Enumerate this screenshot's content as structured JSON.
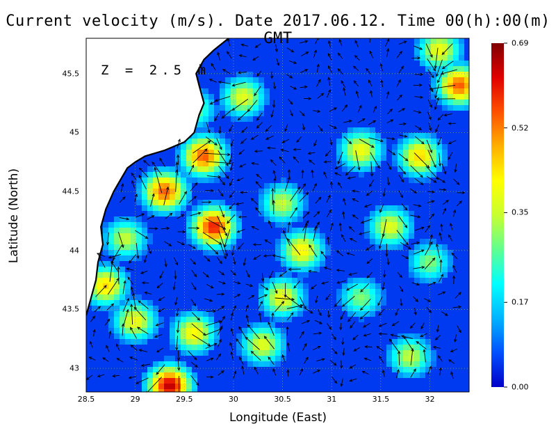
{
  "title": "Current velocity (m/s). Date 2017.06.12. Time 00(h):00(m) GMT",
  "depth_label": "Z = 2.5 m",
  "xlabel": "Longitude (East)",
  "ylabel": "Latitude (North)",
  "map": {
    "lon_range": [
      28.5,
      32.4
    ],
    "lat_range": [
      42.8,
      45.8
    ],
    "x_ticks": [
      "28.5",
      "29",
      "29.5",
      "30",
      "30.5",
      "31",
      "31.5",
      "32"
    ],
    "y_ticks": [
      "43",
      "43.5",
      "44",
      "44.5",
      "45",
      "45.5"
    ],
    "grid": true,
    "land_color": "#ffffff",
    "coast_color": "#000000"
  },
  "colorbar": {
    "vmin": 0.0,
    "vmax": 0.69,
    "ticks": [
      "0.69",
      "0.52",
      "0.35",
      "0.17",
      "0.00"
    ],
    "colormap": [
      "#0000c8",
      "#0050ff",
      "#00b4ff",
      "#00ffff",
      "#60ff90",
      "#c8ff30",
      "#ffff00",
      "#ffb000",
      "#ff5000",
      "#e00000",
      "#800000"
    ]
  },
  "speed_features": [
    {
      "lon": 29.3,
      "lat": 44.5,
      "speed": 0.55
    },
    {
      "lon": 29.8,
      "lat": 44.2,
      "speed": 0.6
    },
    {
      "lon": 29.7,
      "lat": 44.8,
      "speed": 0.55
    },
    {
      "lon": 29.35,
      "lat": 42.85,
      "speed": 0.65
    },
    {
      "lon": 32.3,
      "lat": 45.4,
      "speed": 0.55
    },
    {
      "lon": 32.1,
      "lat": 45.7,
      "speed": 0.4
    },
    {
      "lon": 31.3,
      "lat": 44.85,
      "speed": 0.4
    },
    {
      "lon": 31.9,
      "lat": 44.8,
      "speed": 0.45
    },
    {
      "lon": 30.5,
      "lat": 44.4,
      "speed": 0.35
    },
    {
      "lon": 30.7,
      "lat": 44.0,
      "speed": 0.42
    },
    {
      "lon": 30.5,
      "lat": 43.6,
      "speed": 0.4
    },
    {
      "lon": 31.6,
      "lat": 44.2,
      "speed": 0.38
    },
    {
      "lon": 28.7,
      "lat": 43.7,
      "speed": 0.45
    },
    {
      "lon": 29.0,
      "lat": 43.4,
      "speed": 0.4
    },
    {
      "lon": 29.6,
      "lat": 43.3,
      "speed": 0.42
    },
    {
      "lon": 30.3,
      "lat": 43.2,
      "speed": 0.38
    },
    {
      "lon": 31.8,
      "lat": 43.1,
      "speed": 0.35
    },
    {
      "lon": 30.1,
      "lat": 45.3,
      "speed": 0.38
    },
    {
      "lon": 29.6,
      "lat": 45.2,
      "speed": 0.3
    },
    {
      "lon": 31.3,
      "lat": 43.6,
      "speed": 0.3
    },
    {
      "lon": 28.9,
      "lat": 44.1,
      "speed": 0.35
    },
    {
      "lon": 32.0,
      "lat": 43.9,
      "speed": 0.3
    }
  ],
  "land": {
    "coast": [
      [
        28.5,
        43.45
      ],
      [
        28.55,
        43.6
      ],
      [
        28.6,
        43.75
      ],
      [
        28.62,
        43.9
      ],
      [
        28.67,
        44.05
      ],
      [
        28.65,
        44.2
      ],
      [
        28.7,
        44.35
      ],
      [
        28.78,
        44.5
      ],
      [
        28.85,
        44.6
      ],
      [
        28.92,
        44.7
      ],
      [
        29.0,
        44.75
      ],
      [
        29.1,
        44.8
      ],
      [
        29.3,
        44.85
      ],
      [
        29.5,
        44.92
      ],
      [
        29.6,
        45.0
      ],
      [
        29.65,
        45.15
      ],
      [
        29.7,
        45.25
      ],
      [
        29.65,
        45.4
      ],
      [
        29.62,
        45.5
      ],
      [
        29.7,
        45.62
      ],
      [
        29.8,
        45.7
      ],
      [
        29.95,
        45.8
      ]
    ],
    "fill_corner": [
      [
        28.5,
        45.8
      ]
    ]
  }
}
